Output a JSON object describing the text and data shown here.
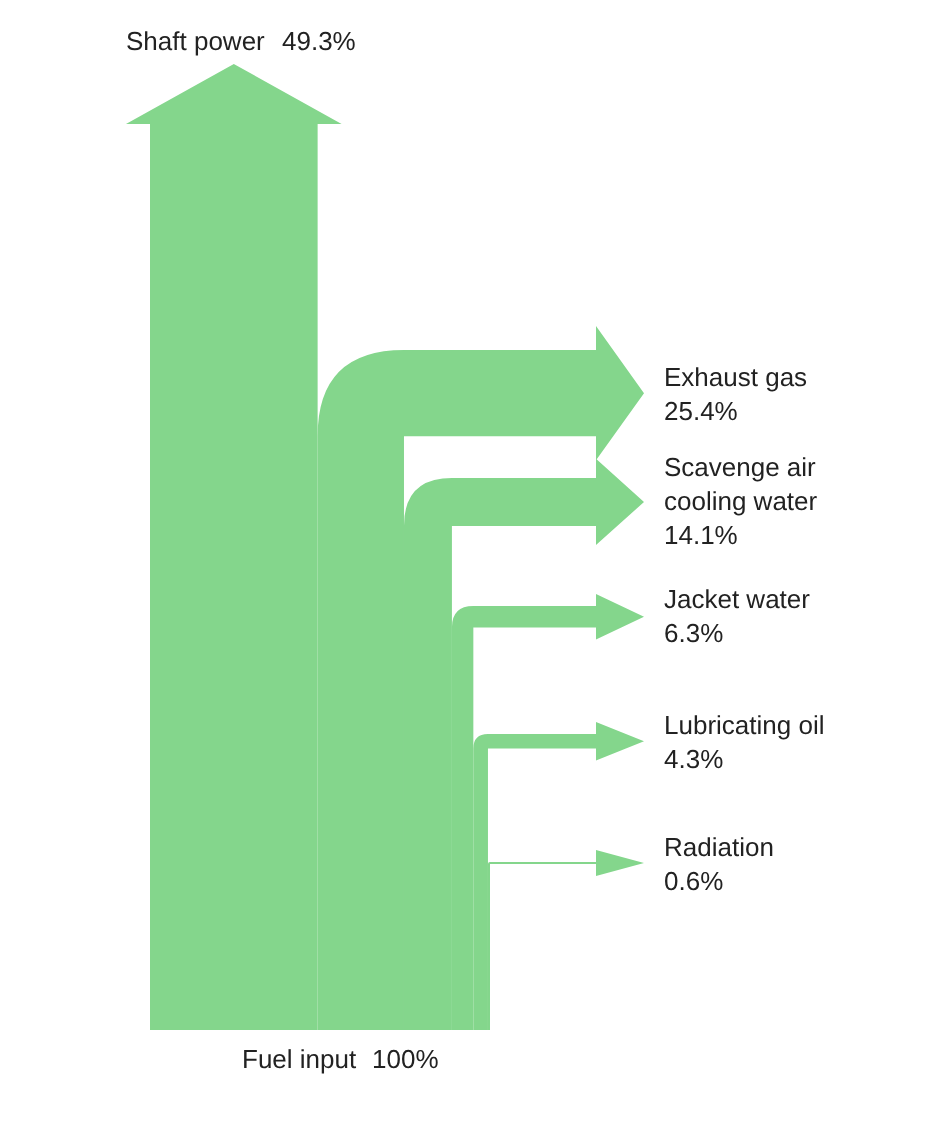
{
  "chart_data": {
    "type": "other",
    "categories": [
      "Fuel input",
      "Shaft power",
      "Exhaust gas",
      "Scavenge air cooling water",
      "Jacket water",
      "Lubricating oil",
      "Radiation"
    ],
    "values": [
      100,
      49.3,
      25.4,
      14.1,
      6.3,
      4.3,
      0.6
    ],
    "value_labels": [
      "100%",
      "49.3%",
      "25.4%",
      "14.1%",
      "6.3%",
      "4.3%",
      "0.6%"
    ],
    "color": "#84d68c"
  }
}
